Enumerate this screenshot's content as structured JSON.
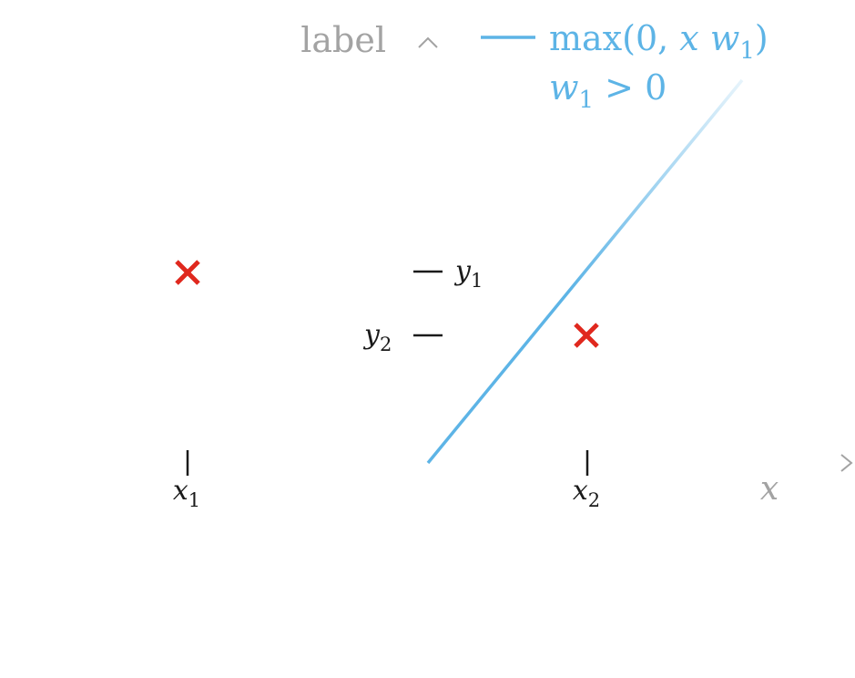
{
  "axes": {
    "y_label": "label",
    "x_label": "x",
    "x_ticks": [
      {
        "base": "x",
        "sub": "1"
      },
      {
        "base": "x",
        "sub": "2"
      }
    ],
    "y_ticks": [
      {
        "base": "y",
        "sub": "1"
      },
      {
        "base": "y",
        "sub": "2"
      }
    ]
  },
  "legend": {
    "line1_prefix": "max(0, ",
    "line1_var": "x",
    "line1_w": "w",
    "line1_w_sub": "1",
    "line1_suffix": ")",
    "line2_w": "w",
    "line2_w_sub": "1",
    "line2_rest": " > 0"
  },
  "colors": {
    "curve": "#5db4e6",
    "axis": "#a3a3a3",
    "ticks": "#1a1a1a",
    "marker": "#e0281e"
  },
  "markers": [
    {
      "label": "x1-y1",
      "icon": "cross"
    },
    {
      "label": "x2-y2",
      "icon": "cross"
    }
  ]
}
